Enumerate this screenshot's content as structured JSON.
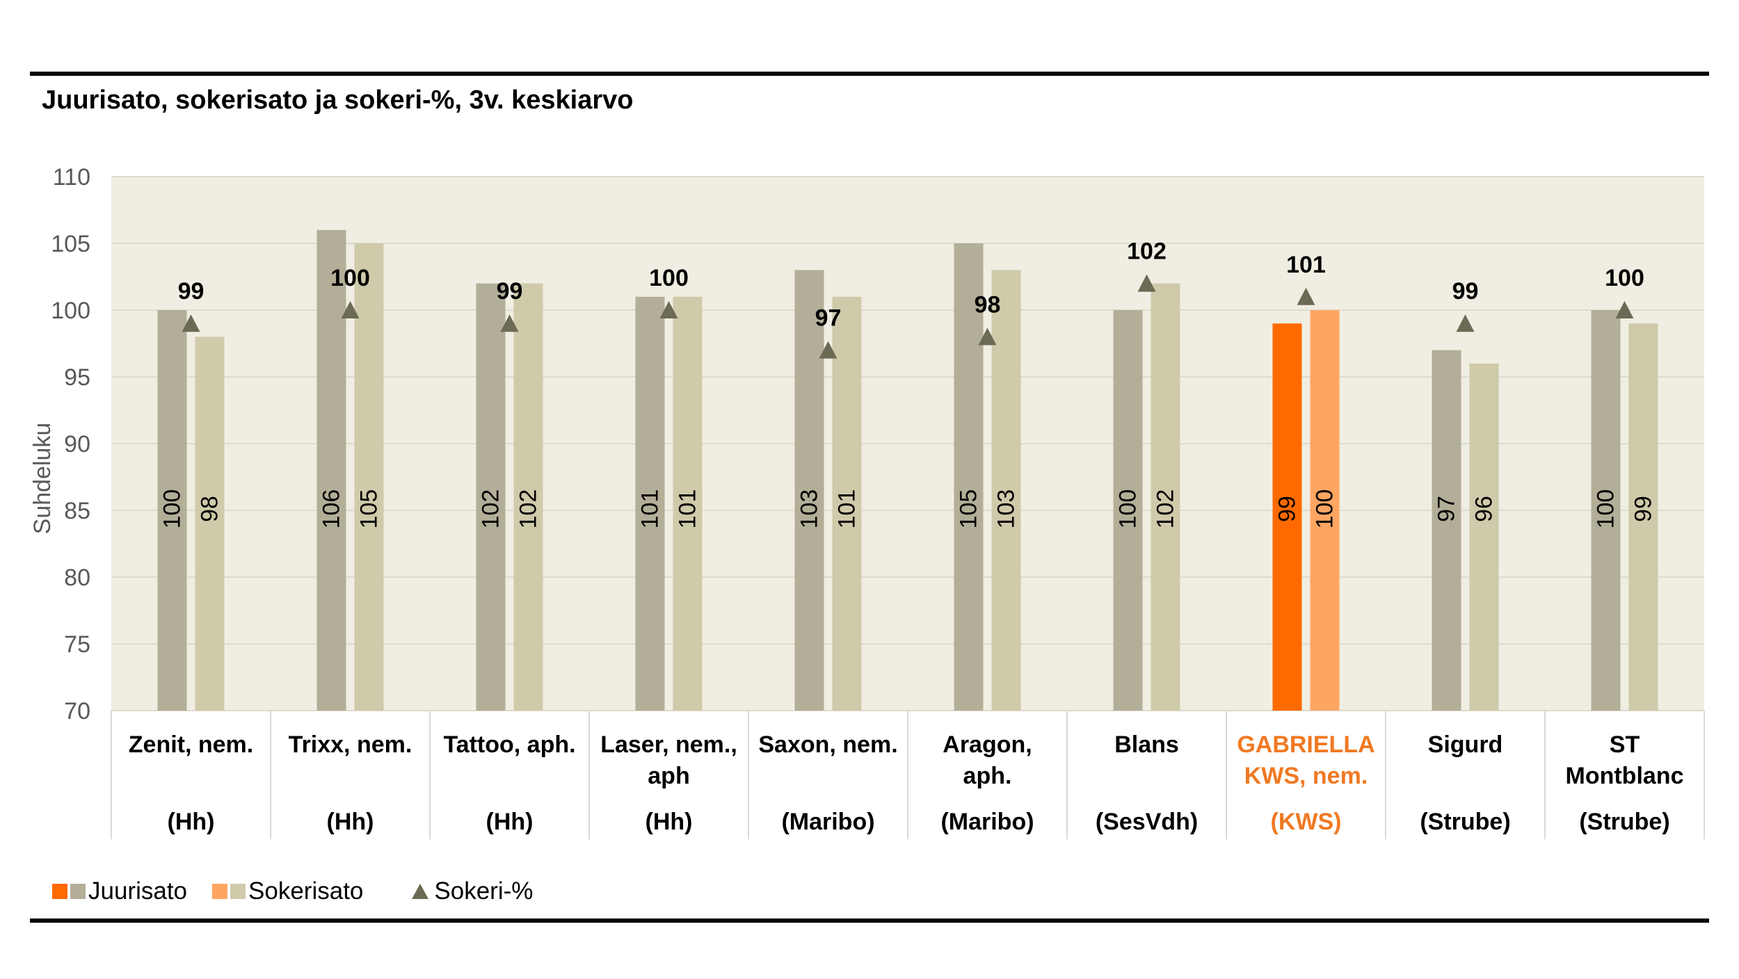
{
  "chart_data": {
    "type": "bar",
    "title": "Juurisato, sokerisato ja sokeri-%, 3v. keskiarvo",
    "ylabel": "Suhdeluku",
    "xlabel": "",
    "ylim": [
      70,
      110
    ],
    "yticks": [
      70,
      75,
      80,
      85,
      90,
      95,
      100,
      105,
      110
    ],
    "grid": true,
    "legend_position": "bottom-left",
    "categories": [
      {
        "name_lines": [
          "Zenit, nem."
        ],
        "breeder": "(Hh)",
        "highlight": false
      },
      {
        "name_lines": [
          "Trixx, nem."
        ],
        "breeder": "(Hh)",
        "highlight": false
      },
      {
        "name_lines": [
          "Tattoo, aph."
        ],
        "breeder": "(Hh)",
        "highlight": false
      },
      {
        "name_lines": [
          "Laser, nem.,",
          "aph"
        ],
        "breeder": "(Hh)",
        "highlight": false
      },
      {
        "name_lines": [
          "Saxon, nem."
        ],
        "breeder": "(Maribo)",
        "highlight": false
      },
      {
        "name_lines": [
          "Aragon,",
          "aph."
        ],
        "breeder": "(Maribo)",
        "highlight": false
      },
      {
        "name_lines": [
          "Blans"
        ],
        "breeder": "(SesVdh)",
        "highlight": false
      },
      {
        "name_lines": [
          "GABRIELLA",
          "KWS, nem."
        ],
        "breeder": "(KWS)",
        "highlight": true
      },
      {
        "name_lines": [
          "Sigurd"
        ],
        "breeder": "(Strube)",
        "highlight": false
      },
      {
        "name_lines": [
          "ST",
          "Montblanc"
        ],
        "breeder": "(Strube)",
        "highlight": false
      }
    ],
    "series": [
      {
        "name": "Juurisato",
        "kind": "bar",
        "values": [
          100,
          106,
          102,
          101,
          103,
          105,
          100,
          99,
          97,
          100
        ]
      },
      {
        "name": "Sokerisato",
        "kind": "bar",
        "values": [
          98,
          105,
          102,
          101,
          101,
          103,
          102,
          100,
          96,
          99
        ]
      },
      {
        "name": "Sokeri-%",
        "kind": "marker",
        "values": [
          99,
          100,
          99,
          100,
          97,
          98,
          102,
          101,
          99,
          100
        ]
      }
    ],
    "colors": {
      "juurisato": "#b3ae98",
      "sokerisato": "#cfcaaa",
      "juurisato_highlight": "#ff6a00",
      "sokerisato_highlight": "#ffa562",
      "marker": "#6b6a55",
      "plot_background": "#f0eee2",
      "gridline": "#dedbcc",
      "highlight_text": "#f07922",
      "axis_text": "#595959"
    }
  },
  "legend": {
    "juurisato_label": "Juurisato",
    "sokerisato_label": "Sokerisato",
    "sokeri_label": "Sokeri-%"
  }
}
